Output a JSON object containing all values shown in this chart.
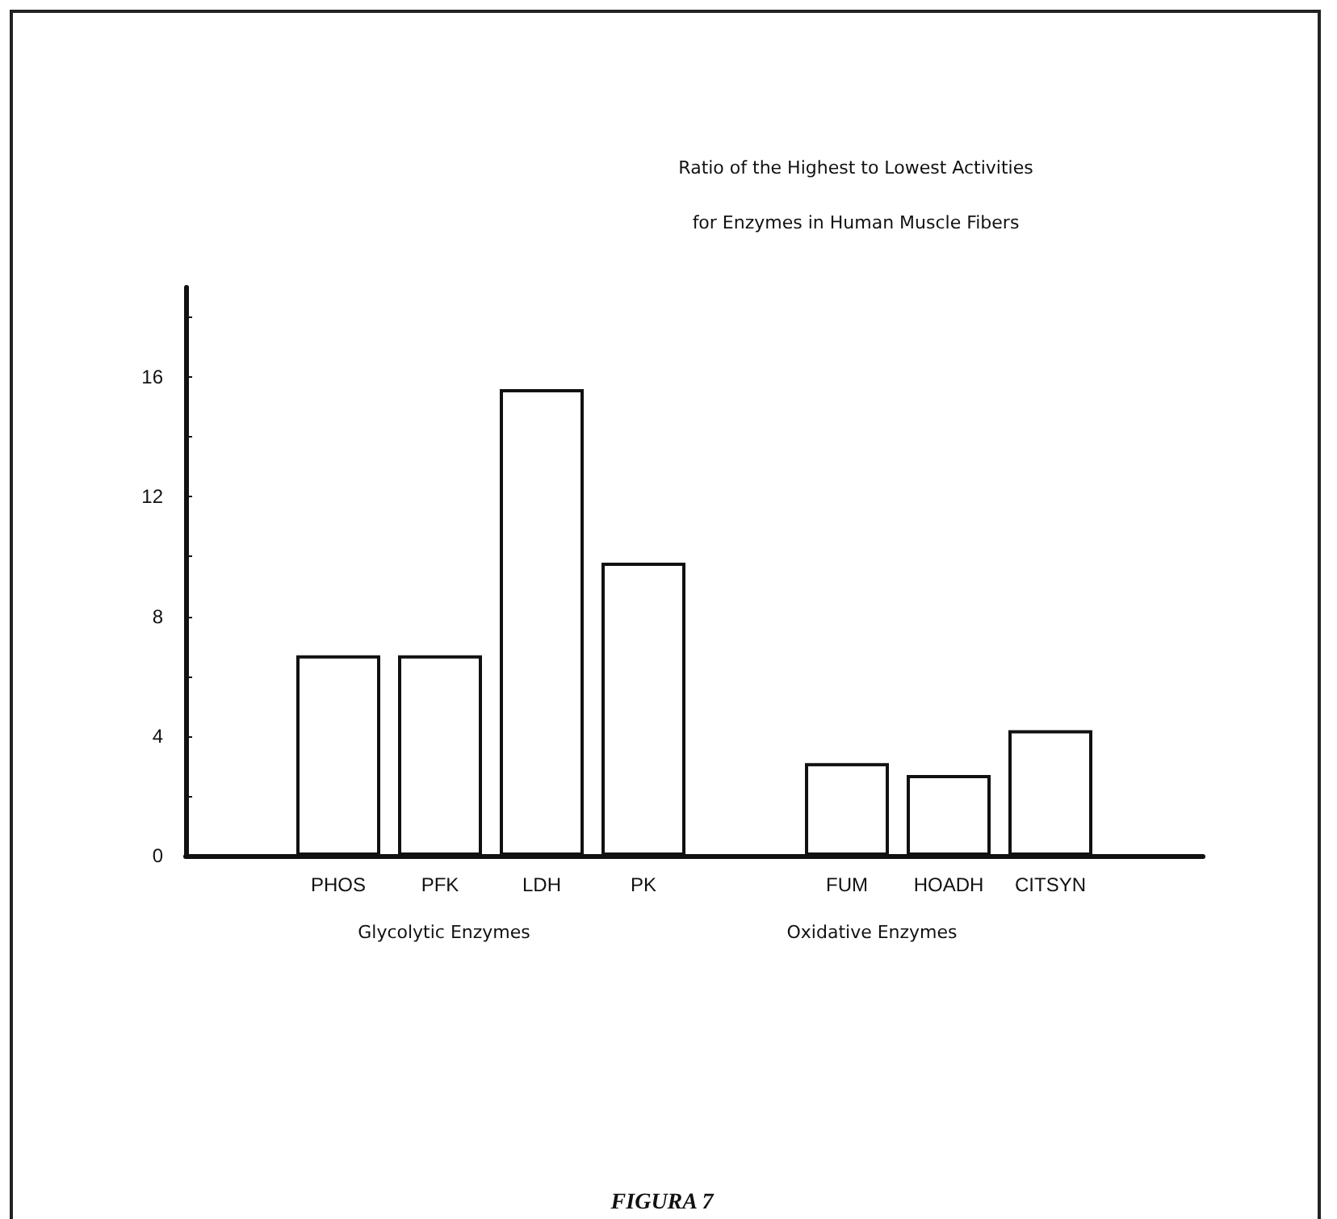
{
  "chart_data": {
    "type": "bar",
    "title": "Ratio of the Highest to Lowest Activities\nfor Enzymes in Human Muscle Fibers",
    "categories": [
      null,
      "PHOS",
      "PFK",
      "LDH",
      "PK",
      null,
      "FUM",
      "HOADH",
      "CITSYN",
      null
    ],
    "values": [
      null,
      6.7,
      6.7,
      15.6,
      9.8,
      null,
      3.1,
      2.7,
      4.2,
      null
    ],
    "color": "#ffffff",
    "ylim": [
      0,
      19
    ],
    "yticks": [
      0,
      {
        "value": 2,
        "label": null
      },
      4,
      {
        "value": 6,
        "label": null
      },
      8,
      {
        "value": 10,
        "label": null
      },
      12,
      {
        "value": 14,
        "label": null
      },
      16,
      {
        "value": 18,
        "label": null
      }
    ],
    "annotations": [
      "Glycolytic Enzymes",
      "Oxidative Enzymes",
      "FIGURA 7"
    ]
  }
}
